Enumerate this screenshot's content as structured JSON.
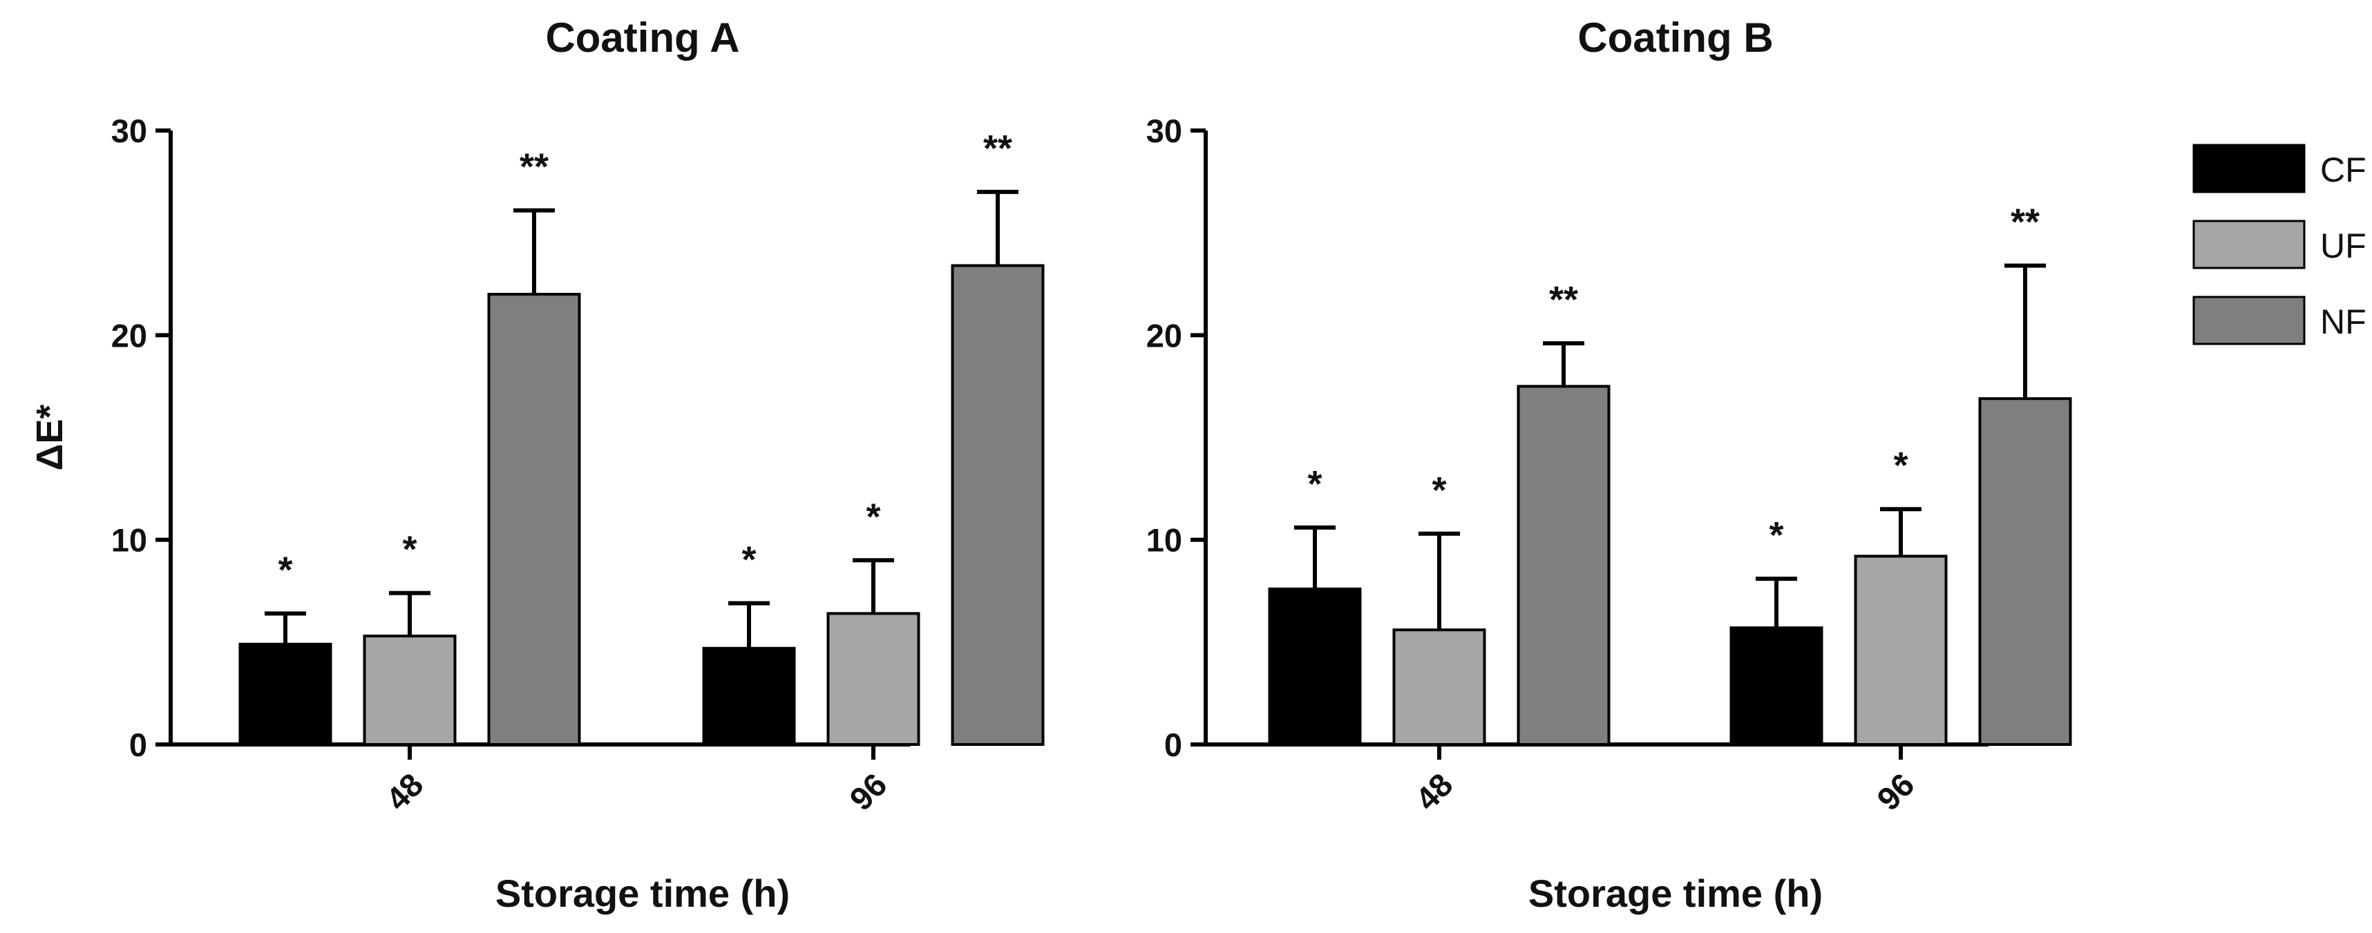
{
  "chart_data": [
    {
      "type": "bar",
      "title": "Coating A",
      "xlabel": "Storage time (h)",
      "ylabel": "ΔE*",
      "ylim": [
        0,
        30
      ],
      "yticks": [
        0,
        10,
        20,
        30
      ],
      "categories": [
        "48",
        "96"
      ],
      "series": [
        {
          "name": "CF",
          "values": [
            4.9,
            4.7
          ],
          "errors": [
            1.5,
            2.2
          ],
          "labels": [
            "*",
            "*"
          ]
        },
        {
          "name": "UF",
          "values": [
            5.3,
            6.4
          ],
          "errors": [
            2.1,
            2.6
          ],
          "labels": [
            "*",
            "*"
          ]
        },
        {
          "name": "NF",
          "values": [
            22.0,
            23.4
          ],
          "errors": [
            4.1,
            3.6
          ],
          "labels": [
            "**",
            "**"
          ]
        }
      ]
    },
    {
      "type": "bar",
      "title": "Coating B",
      "xlabel": "Storage time  (h)",
      "ylabel": "",
      "ylim": [
        0,
        30
      ],
      "yticks": [
        0,
        10,
        20,
        30
      ],
      "categories": [
        "48",
        "96"
      ],
      "series": [
        {
          "name": "CF",
          "values": [
            7.6,
            5.7
          ],
          "errors": [
            3.0,
            2.4
          ],
          "labels": [
            "*",
            "*"
          ]
        },
        {
          "name": "UF",
          "values": [
            5.6,
            9.2
          ],
          "errors": [
            4.7,
            2.3
          ],
          "labels": [
            "*",
            "*"
          ]
        },
        {
          "name": "NF",
          "values": [
            17.5,
            16.9
          ],
          "errors": [
            2.1,
            6.5
          ],
          "labels": [
            "**",
            "**"
          ]
        }
      ]
    }
  ],
  "legend": {
    "position": "right",
    "items": [
      {
        "name": "CF",
        "color": "#000000"
      },
      {
        "name": "UF",
        "color": "#a6a6a8"
      },
      {
        "name": "NF",
        "color": "#7f7f7f"
      }
    ]
  }
}
